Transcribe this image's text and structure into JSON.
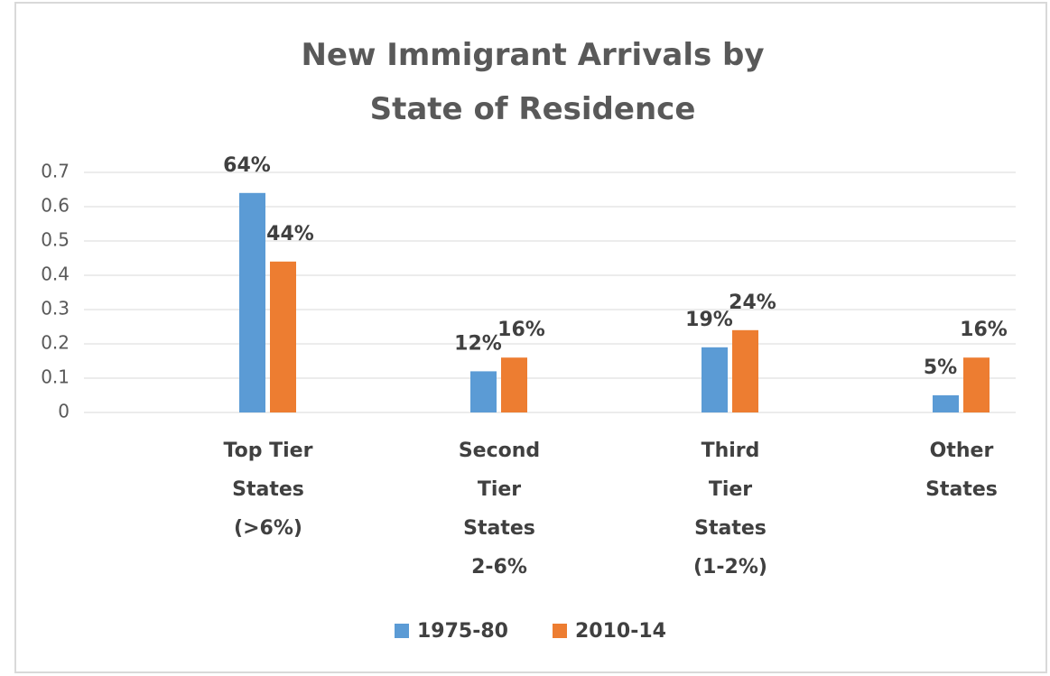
{
  "chart_data": {
    "type": "bar",
    "title": "New Immigrant Arrivals by State of Residence",
    "categories": [
      "Top Tier States (>6%)",
      "Second Tier States 2-6%",
      "Third Tier States (1-2%)",
      "Other States"
    ],
    "series": [
      {
        "name": "1975-80",
        "color": "#5b9bd5",
        "values": [
          0.64,
          0.12,
          0.19,
          0.05
        ],
        "value_labels": [
          "64%",
          "12%",
          "19%",
          "5%"
        ]
      },
      {
        "name": "2010-14",
        "color": "#ed7d31",
        "values": [
          0.44,
          0.16,
          0.24,
          0.16
        ],
        "value_labels": [
          "44%",
          "16%",
          "24%",
          "16%"
        ]
      }
    ],
    "ylim": [
      0,
      0.7
    ],
    "yticks": [
      0,
      0.1,
      0.2,
      0.3,
      0.4,
      0.5,
      0.6,
      0.7
    ],
    "grid": true,
    "legend": "bottom"
  }
}
